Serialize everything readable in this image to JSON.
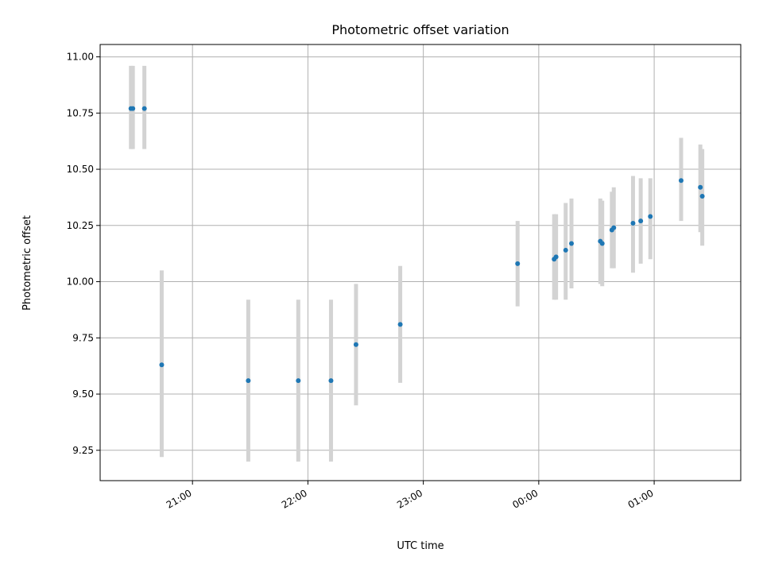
{
  "chart_data": {
    "type": "scatter",
    "title": "Photometric offset variation",
    "xlabel": "UTC time",
    "ylabel": "Photometric offset",
    "x_unit": "UTC time (date wrap past midnight)",
    "xlim": [
      "20:12",
      "01:45"
    ],
    "ylim": [
      9.115,
      11.055
    ],
    "xticks": [
      "21:00",
      "22:00",
      "23:00",
      "00:00",
      "01:00"
    ],
    "yticks": [
      9.25,
      9.5,
      9.75,
      10.0,
      10.25,
      10.5,
      10.75,
      11.0
    ],
    "grid": true,
    "legend": "none",
    "colors": {
      "points": "#1f77b4",
      "errorbars": "#d3d3d3",
      "grid": "#b0b0b0"
    },
    "points": [
      {
        "x": "20:28",
        "y": 10.77,
        "ylow": 10.59,
        "yhigh": 10.96
      },
      {
        "x": "20:29",
        "y": 10.77,
        "ylow": 10.59,
        "yhigh": 10.96
      },
      {
        "x": "20:35",
        "y": 10.77,
        "ylow": 10.59,
        "yhigh": 10.96
      },
      {
        "x": "20:44",
        "y": 9.63,
        "ylow": 9.22,
        "yhigh": 10.05
      },
      {
        "x": "21:29",
        "y": 9.56,
        "ylow": 9.2,
        "yhigh": 9.92
      },
      {
        "x": "21:55",
        "y": 9.56,
        "ylow": 9.2,
        "yhigh": 9.92
      },
      {
        "x": "22:12",
        "y": 9.56,
        "ylow": 9.2,
        "yhigh": 9.92
      },
      {
        "x": "22:25",
        "y": 9.72,
        "ylow": 9.45,
        "yhigh": 9.99
      },
      {
        "x": "22:48",
        "y": 9.81,
        "ylow": 9.55,
        "yhigh": 10.07
      },
      {
        "x": "23:49",
        "y": 10.08,
        "ylow": 9.89,
        "yhigh": 10.27
      },
      {
        "x": "00:08",
        "y": 10.1,
        "ylow": 9.92,
        "yhigh": 10.3
      },
      {
        "x": "00:09",
        "y": 10.11,
        "ylow": 9.92,
        "yhigh": 10.3
      },
      {
        "x": "00:14",
        "y": 10.14,
        "ylow": 9.92,
        "yhigh": 10.35
      },
      {
        "x": "00:17",
        "y": 10.17,
        "ylow": 9.97,
        "yhigh": 10.37
      },
      {
        "x": "00:32",
        "y": 10.18,
        "ylow": 9.99,
        "yhigh": 10.37
      },
      {
        "x": "00:33",
        "y": 10.17,
        "ylow": 9.98,
        "yhigh": 10.36
      },
      {
        "x": "00:38",
        "y": 10.23,
        "ylow": 10.06,
        "yhigh": 10.4
      },
      {
        "x": "00:39",
        "y": 10.24,
        "ylow": 10.06,
        "yhigh": 10.42
      },
      {
        "x": "00:49",
        "y": 10.26,
        "ylow": 10.04,
        "yhigh": 10.47
      },
      {
        "x": "00:53",
        "y": 10.27,
        "ylow": 10.08,
        "yhigh": 10.46
      },
      {
        "x": "00:58",
        "y": 10.29,
        "ylow": 10.1,
        "yhigh": 10.46
      },
      {
        "x": "01:14",
        "y": 10.45,
        "ylow": 10.27,
        "yhigh": 10.64
      },
      {
        "x": "01:24",
        "y": 10.42,
        "ylow": 10.22,
        "yhigh": 10.61
      },
      {
        "x": "01:25",
        "y": 10.38,
        "ylow": 10.16,
        "yhigh": 10.59
      }
    ]
  }
}
